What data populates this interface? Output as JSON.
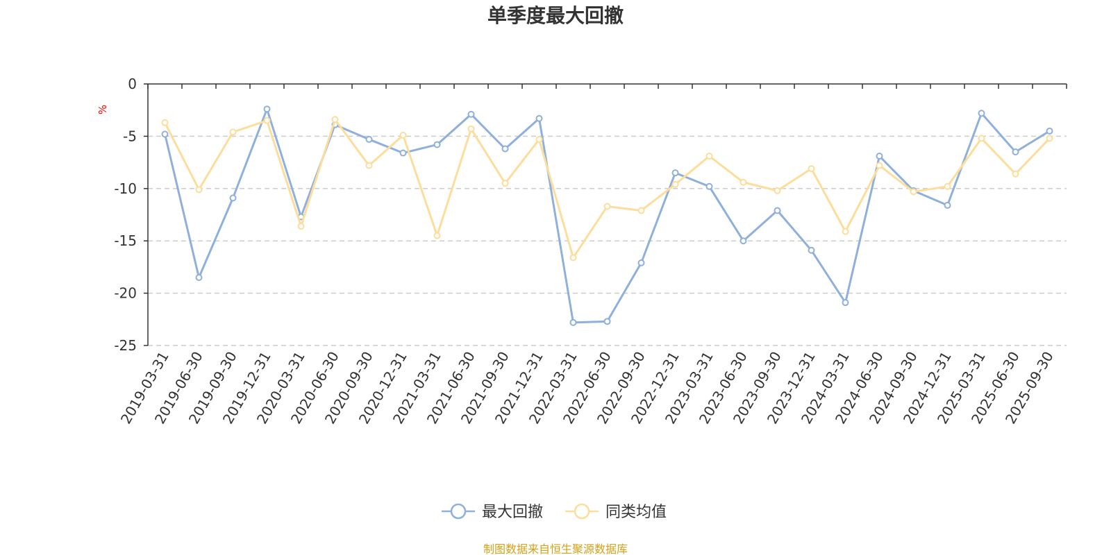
{
  "chart_data": {
    "type": "line",
    "title": "单季度最大回撤",
    "ylabel": "%",
    "ylim": [
      -25,
      0
    ],
    "yticks": [
      0,
      -5,
      -10,
      -15,
      -20,
      -25
    ],
    "grid": true,
    "legend_position": "bottom-center",
    "categories": [
      "2019-03-31",
      "2019-06-30",
      "2019-09-30",
      "2019-12-31",
      "2020-03-31",
      "2020-06-30",
      "2020-09-30",
      "2020-12-31",
      "2021-03-31",
      "2021-06-30",
      "2021-09-30",
      "2021-12-31",
      "2022-03-31",
      "2022-06-30",
      "2022-09-30",
      "2022-12-31",
      "2023-03-31",
      "2023-06-30",
      "2023-09-30",
      "2023-12-31",
      "2024-03-31",
      "2024-06-30",
      "2024-09-30",
      "2024-12-31",
      "2025-03-31",
      "2025-06-30",
      "2025-09-30"
    ],
    "series": [
      {
        "name": "最大回撤",
        "color": "#8fb0dc",
        "values": [
          -4.8,
          -18.5,
          -10.9,
          -2.4,
          -12.7,
          -3.9,
          -5.3,
          -6.6,
          -5.8,
          -2.9,
          -6.2,
          -3.3,
          -22.8,
          -22.7,
          -17.1,
          -8.5,
          -9.8,
          -15.0,
          -12.1,
          -15.9,
          -20.9,
          -6.9,
          -10.2,
          -11.6,
          -2.8,
          -6.5,
          -4.5
        ]
      },
      {
        "name": "同类均值",
        "color": "#fddd9b",
        "values": [
          -3.7,
          -10.1,
          -4.6,
          -3.5,
          -13.6,
          -3.4,
          -7.8,
          -4.9,
          -14.5,
          -4.3,
          -9.5,
          -5.3,
          -16.6,
          -11.7,
          -12.1,
          -9.6,
          -6.9,
          -9.4,
          -10.2,
          -8.1,
          -14.1,
          -7.8,
          -10.3,
          -9.8,
          -5.2,
          -8.6,
          -5.2
        ]
      }
    ]
  },
  "source_text": "制图数据来自恒生聚源数据库",
  "colors": {
    "axis": "#333333",
    "grid": "#cccccc",
    "unit": "#ff0000",
    "source": "#d4a017"
  }
}
